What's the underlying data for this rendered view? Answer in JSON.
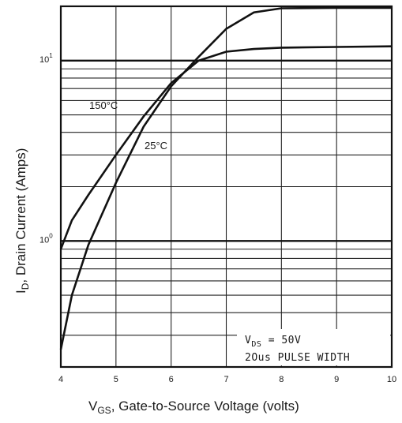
{
  "chart_data": {
    "type": "line",
    "xlabel": "V<sub>GS</sub>, Gate-to-Source Voltage (volts)",
    "xlabel_parts": {
      "main": "V",
      "sub": "GS",
      "rest": ", Gate-to-Source Voltage (volts)"
    },
    "ylabel_parts": {
      "main": "I",
      "sub": "D",
      "rest": ", Drain Current (Amps)"
    },
    "x_ticks": [
      "4",
      "5",
      "6",
      "7",
      "8",
      "9",
      "10"
    ],
    "xlim": [
      4,
      10
    ],
    "y_scale": "log",
    "ylim": [
      0.2,
      20
    ],
    "y_tick_labels": [
      {
        "value": 1,
        "base": "10",
        "exp": "0"
      },
      {
        "value": 10,
        "base": "10",
        "exp": "1"
      }
    ],
    "series": [
      {
        "name": "150°C",
        "x": [
          4.0,
          4.2,
          4.5,
          5.0,
          5.5,
          6.0,
          6.5,
          7.0,
          7.5,
          8.0,
          9.0,
          10.0
        ],
        "y": [
          0.9,
          1.3,
          1.8,
          3.0,
          4.9,
          7.5,
          10.0,
          11.2,
          11.6,
          11.8,
          11.9,
          12.0
        ]
      },
      {
        "name": "25°C",
        "x": [
          4.0,
          4.2,
          4.5,
          5.0,
          5.5,
          6.0,
          6.5,
          7.0,
          7.5,
          8.0,
          9.0,
          10.0
        ],
        "y": [
          0.25,
          0.5,
          0.95,
          2.1,
          4.3,
          7.2,
          10.5,
          15.0,
          18.5,
          19.5,
          19.6,
          19.6
        ]
      }
    ],
    "annotations": [
      "V_DS = 50V",
      "20us PULSE WIDTH"
    ],
    "annotation_text": {
      "vds_main": "V",
      "vds_sub": "DS",
      "vds_rest": " = 50V",
      "pulse": "2Ous PULSE WIDTH"
    },
    "curve_labels": {
      "t150": "150°C",
      "t25": "25°C"
    },
    "grid": true
  }
}
